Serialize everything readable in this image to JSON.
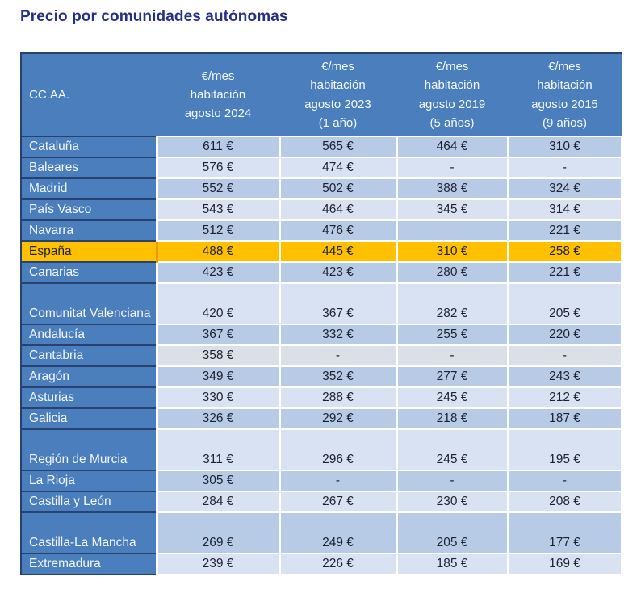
{
  "page": {
    "title": "Precio por comunidades autónomas"
  },
  "table": {
    "columns": [
      {
        "label": "CC.AA."
      },
      {
        "label": "€/mes\nhabitación\nagosto 2024"
      },
      {
        "label": "€/mes\nhabitación\nagosto 2023\n(1 año)"
      },
      {
        "label": "€/mes\nhabitación\nagosto 2019\n(5 años)"
      },
      {
        "label": "€/mes\nhabitación\nagosto 2015\n(9 años)"
      }
    ],
    "rows": [
      {
        "region": "Cataluña",
        "values": [
          "611 €",
          "565 €",
          "464 €",
          "310 €"
        ],
        "shade": "dark",
        "tall": false
      },
      {
        "region": "Baleares",
        "values": [
          "576 €",
          "474 €",
          "-",
          "-"
        ],
        "shade": "light",
        "tall": false
      },
      {
        "region": "Madrid",
        "values": [
          "552 €",
          "502 €",
          "388 €",
          "324 €"
        ],
        "shade": "dark",
        "tall": false
      },
      {
        "region": "País Vasco",
        "values": [
          "543 €",
          "464 €",
          "345 €",
          "314 €"
        ],
        "shade": "light",
        "tall": false
      },
      {
        "region": "Navarra",
        "values": [
          "512 €",
          "476 €",
          "",
          "221 €"
        ],
        "shade": "dark",
        "tall": false
      },
      {
        "region": "España",
        "values": [
          "488 €",
          "445 €",
          "310 €",
          "258 €"
        ],
        "shade": "highlight",
        "tall": false
      },
      {
        "region": "Canarias",
        "values": [
          "423 €",
          "423 €",
          "280 €",
          "221 €"
        ],
        "shade": "dark",
        "tall": false
      },
      {
        "region": "Comunitat Valenciana",
        "values": [
          "420 €",
          "367 €",
          "282 €",
          "205 €"
        ],
        "shade": "light",
        "tall": true
      },
      {
        "region": "Andalucía",
        "values": [
          "367 €",
          "332 €",
          "255 €",
          "220 €"
        ],
        "shade": "dark",
        "tall": false
      },
      {
        "region": "Cantabria",
        "values": [
          "358 €",
          "-",
          "-",
          "-"
        ],
        "shade": "gray",
        "tall": false
      },
      {
        "region": "Aragón",
        "values": [
          "349 €",
          "352 €",
          "277 €",
          "243 €"
        ],
        "shade": "dark",
        "tall": false
      },
      {
        "region": "Asturias",
        "values": [
          "330 €",
          "288 €",
          "245 €",
          "212 €"
        ],
        "shade": "light",
        "tall": false
      },
      {
        "region": "Galicia",
        "values": [
          "326 €",
          "292 €",
          "218 €",
          "187 €"
        ],
        "shade": "dark",
        "tall": false
      },
      {
        "region": "Región de Murcia",
        "values": [
          "311 €",
          "296 €",
          "245 €",
          "195 €"
        ],
        "shade": "light",
        "tall": true
      },
      {
        "region": "La Rioja",
        "values": [
          "305 €",
          "-",
          "-",
          "-"
        ],
        "shade": "dark",
        "tall": false
      },
      {
        "region": "Castilla y León",
        "values": [
          "284 €",
          "267 €",
          "230 €",
          "208 €"
        ],
        "shade": "light",
        "tall": false
      },
      {
        "region": "Castilla-La Mancha",
        "values": [
          "269 €",
          "249 €",
          "205 €",
          "177 €"
        ],
        "shade": "dark",
        "tall": true
      },
      {
        "region": "Extremadura",
        "values": [
          "239 €",
          "226 €",
          "185 €",
          "169 €"
        ],
        "shade": "light",
        "tall": false
      }
    ]
  },
  "colors": {
    "title_navy": "#273088",
    "header_blue": "#4a7ebd",
    "row_dark": "#b8cbe6",
    "row_light": "#d9e2f3",
    "row_gray": "#dbdfe7",
    "highlight_orange": "#ffc000",
    "border_navy": "#27426e",
    "cell_text": "#1e2230"
  },
  "chart_data": {
    "type": "table",
    "title": "Precio por comunidades autónomas",
    "columns": [
      "CC.AA.",
      "€/mes habitación agosto 2024",
      "€/mes habitación agosto 2023 (1 año)",
      "€/mes habitación agosto 2019 (5 años)",
      "€/mes habitación agosto 2015 (9 años)"
    ],
    "unit": "€/mes",
    "highlighted_row": "España",
    "rows": [
      [
        "Cataluña",
        611,
        565,
        464,
        310
      ],
      [
        "Baleares",
        576,
        474,
        null,
        null
      ],
      [
        "Madrid",
        552,
        502,
        388,
        324
      ],
      [
        "País Vasco",
        543,
        464,
        345,
        314
      ],
      [
        "Navarra",
        512,
        476,
        null,
        221
      ],
      [
        "España",
        488,
        445,
        310,
        258
      ],
      [
        "Canarias",
        423,
        423,
        280,
        221
      ],
      [
        "Comunitat Valenciana",
        420,
        367,
        282,
        205
      ],
      [
        "Andalucía",
        367,
        332,
        255,
        220
      ],
      [
        "Cantabria",
        358,
        null,
        null,
        null
      ],
      [
        "Aragón",
        349,
        352,
        277,
        243
      ],
      [
        "Asturias",
        330,
        288,
        245,
        212
      ],
      [
        "Galicia",
        326,
        292,
        218,
        187
      ],
      [
        "Región de Murcia",
        311,
        296,
        245,
        195
      ],
      [
        "La Rioja",
        305,
        null,
        null,
        null
      ],
      [
        "Castilla y León",
        284,
        267,
        230,
        208
      ],
      [
        "Castilla-La Mancha",
        269,
        249,
        205,
        177
      ],
      [
        "Extremadura",
        239,
        226,
        185,
        169
      ]
    ]
  }
}
